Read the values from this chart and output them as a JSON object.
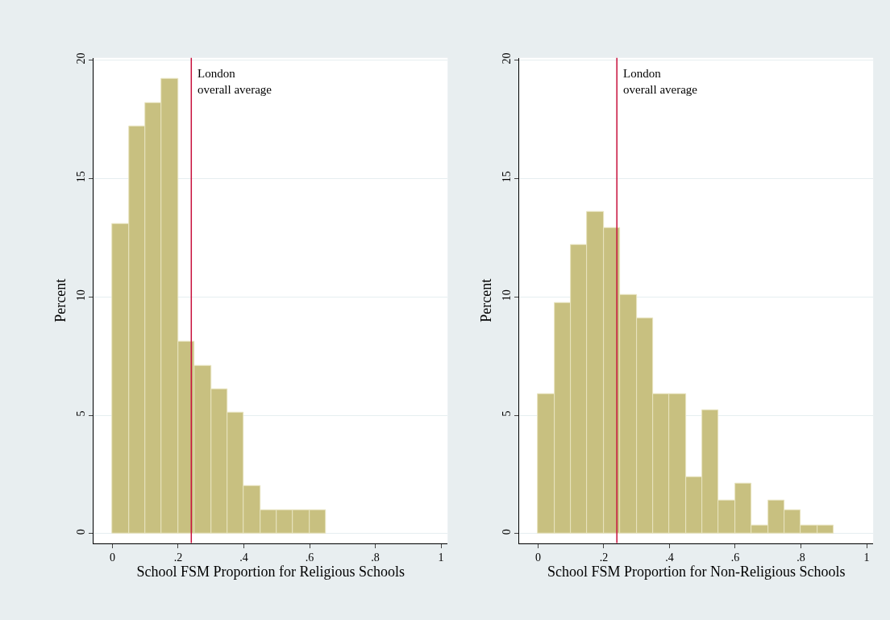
{
  "chart_data": [
    {
      "type": "histogram",
      "xlabel": "School FSM Proportion for Religious Schools",
      "ylabel": "Percent",
      "color": "#c8c080",
      "bins": [
        0,
        0.05,
        0.1,
        0.15,
        0.2,
        0.25,
        0.3,
        0.35,
        0.4,
        0.45,
        0.5,
        0.55,
        0.6,
        0.65
      ],
      "values": [
        13.1,
        17.2,
        18.2,
        19.2,
        8.1,
        7.1,
        6.1,
        5.1,
        2.0,
        1.0,
        1.0,
        1.0,
        1.0
      ],
      "xlim": [
        -0.057,
        1.02
      ],
      "xticks": [
        0,
        {
          "value": 0.2,
          "label": ".2"
        },
        {
          "value": 0.4,
          "label": ".4"
        },
        {
          "value": 0.6,
          "label": ".6"
        },
        {
          "value": 0.8,
          "label": ".8"
        },
        1
      ],
      "ylim": [
        -0.4,
        20.1
      ],
      "yticks": [
        0,
        5,
        10,
        15,
        20
      ],
      "grid": "y",
      "ref_lines": [
        {
          "axis": "x",
          "value": 0.24,
          "label": "London\noverall average",
          "color": "#c8103c"
        }
      ]
    },
    {
      "type": "histogram",
      "xlabel": "School FSM Proportion for Non-Religious Schools",
      "ylabel": "Percent",
      "color": "#c8c080",
      "bins": [
        0,
        0.05,
        0.1,
        0.15,
        0.2,
        0.25,
        0.3,
        0.35,
        0.4,
        0.45,
        0.5,
        0.55,
        0.6,
        0.65,
        0.7,
        0.75,
        0.8,
        0.85,
        0.9
      ],
      "values": [
        5.9,
        9.75,
        12.2,
        13.6,
        12.9,
        10.1,
        9.1,
        5.9,
        5.9,
        2.4,
        5.2,
        1.4,
        2.1,
        0.35,
        1.4,
        1.0,
        0.35,
        0.35
      ],
      "xlim": [
        -0.057,
        1.02
      ],
      "xticks": [
        0,
        {
          "value": 0.2,
          "label": ".2"
        },
        {
          "value": 0.4,
          "label": ".4"
        },
        {
          "value": 0.6,
          "label": ".6"
        },
        {
          "value": 0.8,
          "label": ".8"
        },
        1
      ],
      "ylim": [
        -0.4,
        20.1
      ],
      "yticks": [
        0,
        5,
        10,
        15,
        20
      ],
      "grid": "y",
      "ref_lines": [
        {
          "axis": "x",
          "value": 0.24,
          "label": "London\noverall average",
          "color": "#c8103c"
        }
      ]
    }
  ]
}
